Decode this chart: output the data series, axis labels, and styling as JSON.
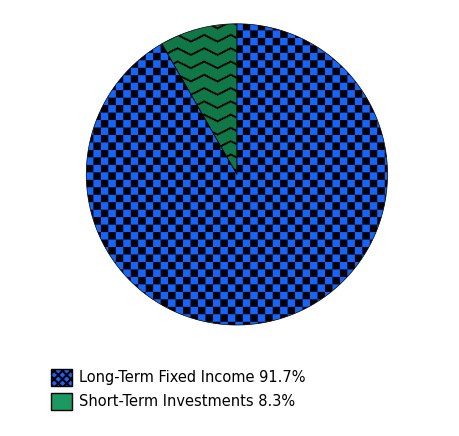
{
  "slices": [
    91.7,
    8.3
  ],
  "labels": [
    "Long-Term Fixed Income 91.7%",
    "Short-Term Investments 8.3%"
  ],
  "facecolors": [
    "#1464ff",
    "#1a9960"
  ],
  "hatch_patterns": [
    "+",
    "~"
  ],
  "startangle": 90,
  "legend_fontsize": 10.5,
  "background_color": "#ffffff",
  "checker_size": 8,
  "zigzag_size": 6
}
